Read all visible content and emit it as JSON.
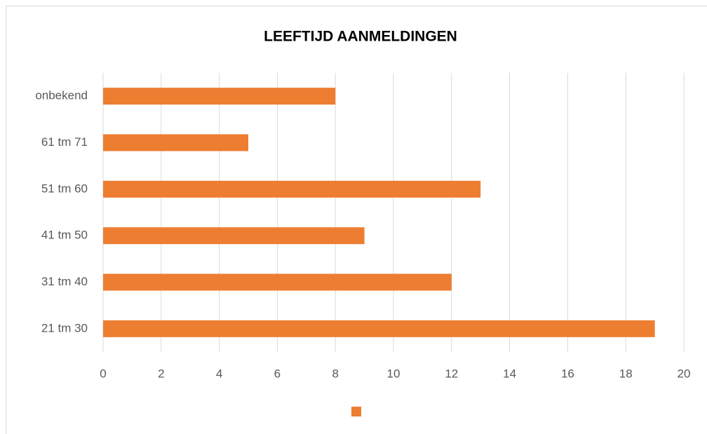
{
  "chart_data": {
    "type": "hbar",
    "title": "LEEFTIJD AANMELDINGEN",
    "categories": [
      "21 tm 30",
      "31 tm 40",
      "41 tm 50",
      "51 tm 60",
      "61 tm 71",
      "onbekend"
    ],
    "values": [
      19,
      12,
      9,
      13,
      5,
      8
    ],
    "color": "#ed7d31",
    "xlim": [
      0,
      20
    ],
    "xticks": [
      0,
      2,
      4,
      6,
      8,
      10,
      12,
      14,
      16,
      18,
      20
    ],
    "grid": true,
    "legend": "bottom"
  }
}
